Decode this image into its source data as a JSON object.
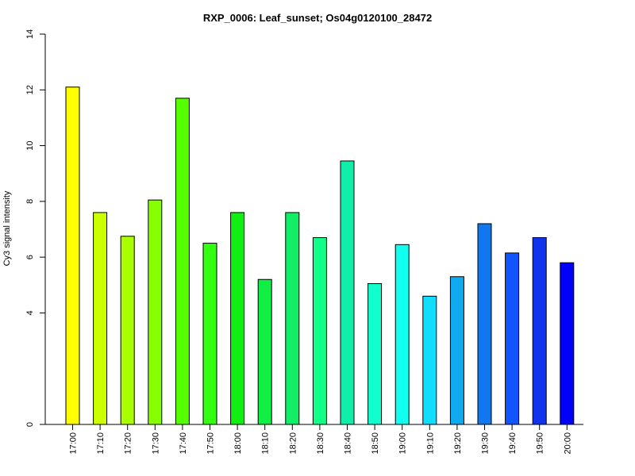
{
  "chart_data": {
    "type": "bar",
    "title": "RXP_0006: Leaf_sunset; Os04g0120100_28472",
    "xlabel": "",
    "ylabel": "Cy3 signal intensity",
    "ylim": [
      0,
      14
    ],
    "yticks": [
      0,
      4,
      6,
      8,
      10,
      12,
      14
    ],
    "grid": false,
    "categories": [
      "17:00",
      "17:10",
      "17:20",
      "17:30",
      "17:40",
      "17:50",
      "18:00",
      "18:10",
      "18:20",
      "18:30",
      "18:40",
      "18:50",
      "19:00",
      "19:10",
      "19:20",
      "19:30",
      "19:40",
      "19:50",
      "20:00"
    ],
    "values": [
      12.1,
      7.6,
      6.75,
      8.05,
      11.7,
      6.5,
      7.6,
      5.2,
      7.6,
      6.7,
      9.45,
      5.05,
      6.45,
      4.6,
      5.3,
      7.2,
      6.15,
      6.7,
      5.8
    ],
    "colors": [
      "#FFFF00",
      "#CCFF00",
      "#AAFF00",
      "#88FF00",
      "#55FF00",
      "#33FF11",
      "#11EE11",
      "#11EE44",
      "#11EE66",
      "#11FF88",
      "#11EEAA",
      "#11FFCC",
      "#11FFEE",
      "#11DDFF",
      "#11AAEE",
      "#1177EE",
      "#1155FF",
      "#1133EE",
      "#0000FF"
    ]
  }
}
